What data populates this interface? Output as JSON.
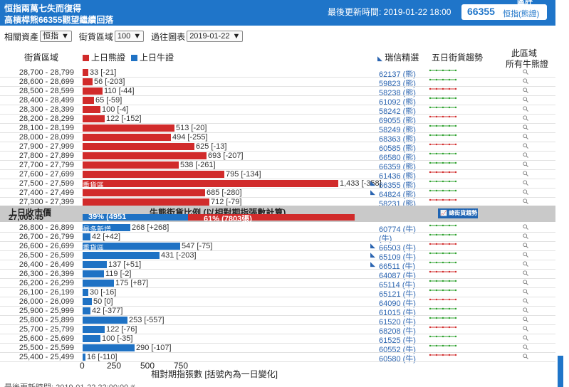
{
  "header": {
    "title_line1": "恒指兩萬七失而復得",
    "title_line2": "高槓桿熊66355觀望繼續回落",
    "updated": "最後更新時間: 2019-01-22 18:00",
    "code": "66355",
    "code_label": "恒指(熊證)",
    "corner": "區評"
  },
  "filters": {
    "asset_label": "相關資產",
    "asset_value": "恒指",
    "range_label": "街貨區域",
    "range_value": "100",
    "chart_label": "過往圖表",
    "chart_value": "2019-01-22"
  },
  "columns": {
    "range": "街貨區域",
    "bear_legend": "上日熊證",
    "bull_legend": "上日牛證",
    "pick": "瑞信精選",
    "trend": "五日街貨趨勢",
    "all_line1": "此區域",
    "all_line2": "所有牛熊證"
  },
  "colors": {
    "bear": "#d12b2b",
    "bull": "#1f72c4",
    "accent": "#1f75c9"
  },
  "band": {
    "close_label": "上日收市價",
    "close_value": "27,005.45",
    "title": "牛熊街貨比例 (以相對期指張數計算)",
    "bull_pct": "39% (4951",
    "bear_pct": "61% (7803張)",
    "trend_button": "總街貨趨勢"
  },
  "chart_data": {
    "type": "bar",
    "xlabel": "相對期指張數 [括號內為一日變化]",
    "xticks": [
      "0",
      "250",
      "500",
      "750"
    ],
    "bear_rows": [
      {
        "range": "28,700 - 28,799",
        "value": 33,
        "label": "33 [-21]",
        "code": "62137 (熊)"
      },
      {
        "range": "28,600 - 28,699",
        "value": 56,
        "label": "56 [-203]",
        "code": "59823 (熊)"
      },
      {
        "range": "28,500 - 28,599",
        "value": 110,
        "label": "110 [-44]",
        "code": "58238 (熊)"
      },
      {
        "range": "28,400 - 28,499",
        "value": 65,
        "label": "65 [-59]",
        "code": "61092 (熊)"
      },
      {
        "range": "28,300 - 28,399",
        "value": 100,
        "label": "100 [-4]",
        "code": "58242 (熊)"
      },
      {
        "range": "28,200 - 28,299",
        "value": 122,
        "label": "122 [-152]",
        "code": "69055 (熊)"
      },
      {
        "range": "28,100 - 28,199",
        "value": 513,
        "label": "513 [-20]",
        "code": "58249 (熊)"
      },
      {
        "range": "28,000 - 28,099",
        "value": 494,
        "label": "494 [-255]",
        "code": "68363 (熊)"
      },
      {
        "range": "27,900 - 27,999",
        "value": 625,
        "label": "625 [-13]",
        "code": "60585 (熊)"
      },
      {
        "range": "27,800 - 27,899",
        "value": 693,
        "label": "693 [-207]",
        "code": "66580 (熊)"
      },
      {
        "range": "27,700 - 27,799",
        "value": 538,
        "label": "538 [-261]",
        "code": "66359 (熊)"
      },
      {
        "range": "27,600 - 27,699",
        "value": 795,
        "label": "795 [-134]",
        "code": "61436 (熊)"
      },
      {
        "range": "27,500 - 27,599",
        "value": 1433,
        "label": "1,433 [-358]",
        "code": "66355 (熊)",
        "tag": "重貨區",
        "pick": true
      },
      {
        "range": "27,400 - 27,499",
        "value": 685,
        "label": "685 [-280]",
        "code": "64824 (熊)",
        "pick": true
      },
      {
        "range": "27,300 - 27,399",
        "value": 712,
        "label": "712 [-79]",
        "code": "58231 (熊)"
      }
    ],
    "bull_rows": [
      {
        "range": "26,800 - 26,899",
        "value": 268,
        "label": "268 [+268]",
        "code": "60774 (牛)",
        "tag": "最多新增"
      },
      {
        "range": "26,700 - 26,799",
        "value": 42,
        "label": "42 [+42]",
        "code": "(牛)"
      },
      {
        "range": "26,600 - 26,699",
        "value": 547,
        "label": "547 [-75]",
        "code": "66503 (牛)",
        "tag": "重貨區",
        "pick": true
      },
      {
        "range": "26,500 - 26,599",
        "value": 431,
        "label": "431 [-203]",
        "code": "65109 (牛)",
        "pick": true
      },
      {
        "range": "26,400 - 26,499",
        "value": 137,
        "label": "137 [+51]",
        "code": "66511 (牛)",
        "pick": true
      },
      {
        "range": "26,300 - 26,399",
        "value": 119,
        "label": "119 [-2]",
        "code": "64087 (牛)"
      },
      {
        "range": "26,200 - 26,299",
        "value": 175,
        "label": "175 [+87]",
        "code": "65114 (牛)"
      },
      {
        "range": "26,100 - 26,199",
        "value": 30,
        "label": "30 [-16]",
        "code": "65121 (牛)"
      },
      {
        "range": "26,000 - 26,099",
        "value": 50,
        "label": "50 [0]",
        "code": "64090 (牛)"
      },
      {
        "range": "25,900 - 25,999",
        "value": 42,
        "label": "42 [-377]",
        "code": "61015 (牛)"
      },
      {
        "range": "25,800 - 25,899",
        "value": 253,
        "label": "253 [-557]",
        "code": "61520 (牛)"
      },
      {
        "range": "25,700 - 25,799",
        "value": 122,
        "label": "122 [-76]",
        "code": "68208 (牛)"
      },
      {
        "range": "25,600 - 25,699",
        "value": 100,
        "label": "100 [-35]",
        "code": "61525 (牛)"
      },
      {
        "range": "25,500 - 25,599",
        "value": 290,
        "label": "290 [-107]",
        "code": "60552 (牛)"
      },
      {
        "range": "25,400 - 25,499",
        "value": 16,
        "label": "16 [-110]",
        "code": "60580 (牛)"
      }
    ]
  },
  "footer": {
    "text": "最後更新時間: 2019-01-22 22:00:00 #"
  }
}
